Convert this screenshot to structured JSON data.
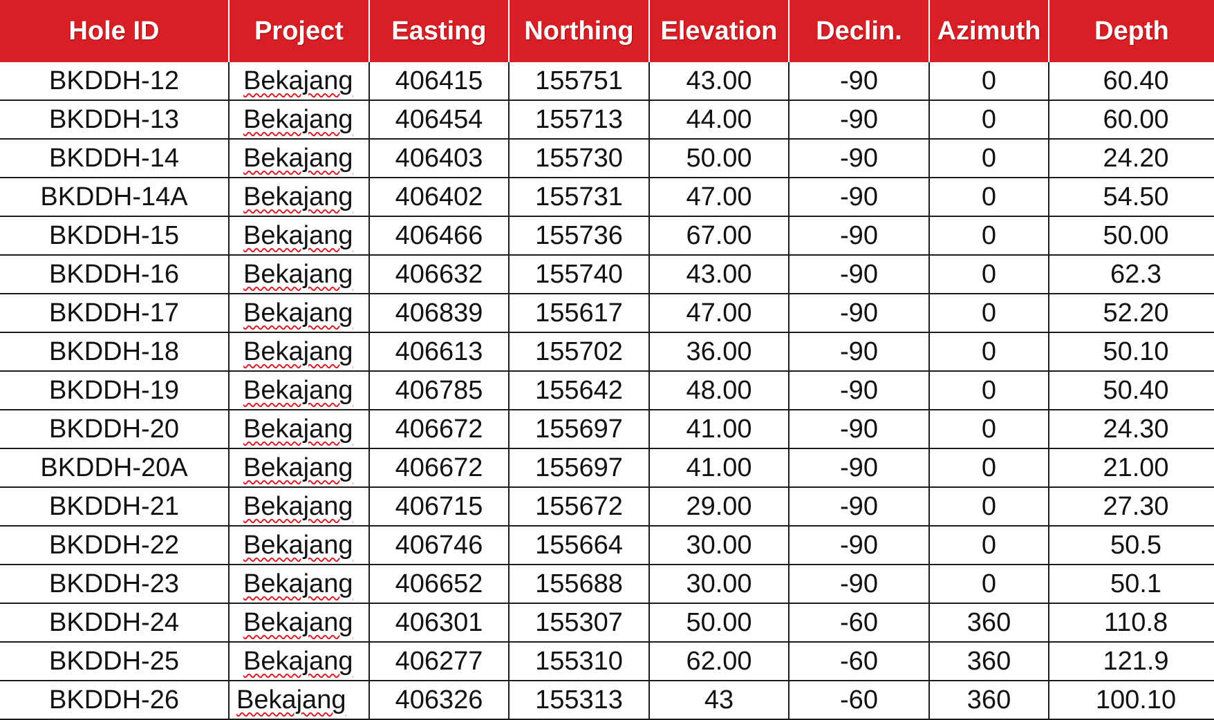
{
  "table": {
    "columns": [
      "Hole ID",
      "Project",
      "Easting",
      "Northing",
      "Elevation",
      "Declin.",
      "Azimuth",
      "Depth"
    ],
    "rows": [
      {
        "hole_id": "BKDDH-12",
        "project": "Bekajang",
        "easting": "406415",
        "northing": "155751",
        "elevation": "43.00",
        "declin": "-90",
        "azimuth": "0",
        "depth": "60.40"
      },
      {
        "hole_id": "BKDDH-13",
        "project": "Bekajang",
        "easting": "406454",
        "northing": "155713",
        "elevation": "44.00",
        "declin": "-90",
        "azimuth": "0",
        "depth": "60.00"
      },
      {
        "hole_id": "BKDDH-14",
        "project": "Bekajang",
        "easting": "406403",
        "northing": "155730",
        "elevation": "50.00",
        "declin": "-90",
        "azimuth": "0",
        "depth": "24.20"
      },
      {
        "hole_id": "BKDDH-14A",
        "project": "Bekajang",
        "easting": "406402",
        "northing": "155731",
        "elevation": "47.00",
        "declin": "-90",
        "azimuth": "0",
        "depth": "54.50"
      },
      {
        "hole_id": "BKDDH-15",
        "project": "Bekajang",
        "easting": "406466",
        "northing": "155736",
        "elevation": "67.00",
        "declin": "-90",
        "azimuth": "0",
        "depth": "50.00"
      },
      {
        "hole_id": "BKDDH-16",
        "project": "Bekajang",
        "easting": "406632",
        "northing": "155740",
        "elevation": "43.00",
        "declin": "-90",
        "azimuth": "0",
        "depth": "62.3"
      },
      {
        "hole_id": "BKDDH-17",
        "project": "Bekajang",
        "easting": "406839",
        "northing": "155617",
        "elevation": "47.00",
        "declin": "-90",
        "azimuth": "0",
        "depth": "52.20"
      },
      {
        "hole_id": "BKDDH-18",
        "project": "Bekajang",
        "easting": "406613",
        "northing": "155702",
        "elevation": "36.00",
        "declin": "-90",
        "azimuth": "0",
        "depth": "50.10"
      },
      {
        "hole_id": "BKDDH-19",
        "project": "Bekajang",
        "easting": "406785",
        "northing": "155642",
        "elevation": "48.00",
        "declin": "-90",
        "azimuth": "0",
        "depth": "50.40"
      },
      {
        "hole_id": "BKDDH-20",
        "project": "Bekajang",
        "easting": "406672",
        "northing": "155697",
        "elevation": "41.00",
        "declin": "-90",
        "azimuth": "0",
        "depth": "24.30"
      },
      {
        "hole_id": "BKDDH-20A",
        "project": "Bekajang",
        "easting": "406672",
        "northing": "155697",
        "elevation": "41.00",
        "declin": "-90",
        "azimuth": "0",
        "depth": "21.00"
      },
      {
        "hole_id": "BKDDH-21",
        "project": "Bekajang",
        "easting": "406715",
        "northing": "155672",
        "elevation": "29.00",
        "declin": "-90",
        "azimuth": "0",
        "depth": "27.30"
      },
      {
        "hole_id": "BKDDH-22",
        "project": "Bekajang",
        "easting": "406746",
        "northing": "155664",
        "elevation": "30.00",
        "declin": "-90",
        "azimuth": "0",
        "depth": "50.5"
      },
      {
        "hole_id": "BKDDH-23",
        "project": "Bekajang",
        "easting": "406652",
        "northing": "155688",
        "elevation": "30.00",
        "declin": "-90",
        "azimuth": "0",
        "depth": "50.1"
      },
      {
        "hole_id": "BKDDH-24",
        "project": "Bekajang",
        "easting": "406301",
        "northing": "155307",
        "elevation": "50.00",
        "declin": "-60",
        "azimuth": "360",
        "depth": "110.8"
      },
      {
        "hole_id": "BKDDH-25",
        "project": "Bekajang",
        "easting": "406277",
        "northing": "155310",
        "elevation": "62.00",
        "declin": "-60",
        "azimuth": "360",
        "depth": "121.9"
      },
      {
        "hole_id": "BKDDH-26",
        "project": "Bekajang",
        "easting": "406326",
        "northing": "155313",
        "elevation": "43",
        "declin": "-60",
        "azimuth": "360",
        "depth": "100.10"
      }
    ]
  },
  "colors": {
    "header_background": "#d81f26",
    "header_text": "#ffffff",
    "spellcheck_underline": "#d81f26"
  }
}
